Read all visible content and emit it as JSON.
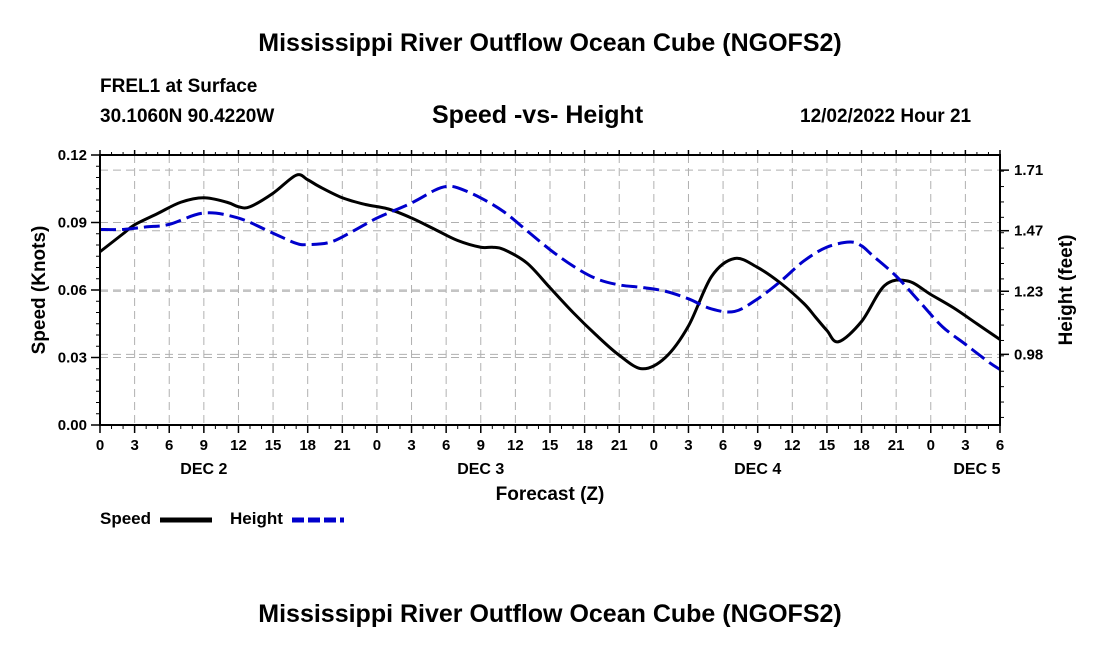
{
  "header": {
    "title": "Mississippi River Outflow Ocean Cube (NGOFS2)",
    "station": "FREL1 at Surface",
    "coords": "30.1060N  90.4220W",
    "subtitle": "Speed -vs- Height",
    "datetime": "12/02/2022 Hour 21"
  },
  "footer": {
    "title": "Mississippi River Outflow Ocean Cube (NGOFS2)"
  },
  "legend": {
    "speed_label": "Speed",
    "height_label": "Height"
  },
  "chart_data": {
    "type": "line",
    "title": "Speed -vs- Height",
    "xlabel": "Forecast (Z)",
    "ylabel": "Speed (Knots)",
    "y2label": "Height (feet)",
    "xlim": [
      0,
      78
    ],
    "ylim": [
      0,
      0.12
    ],
    "y2lim": [
      0.7,
      1.77
    ],
    "grid": true,
    "legend_position": "bottom-left",
    "x_ticks": [
      0,
      3,
      6,
      9,
      12,
      15,
      18,
      21,
      24,
      27,
      30,
      33,
      36,
      39,
      42,
      45,
      48,
      51,
      54,
      57,
      60,
      63,
      66,
      69,
      72,
      75,
      78
    ],
    "x_tick_labels": [
      "0",
      "3",
      "6",
      "9",
      "12",
      "15",
      "18",
      "21",
      "0",
      "3",
      "6",
      "9",
      "12",
      "15",
      "18",
      "21",
      "0",
      "3",
      "6",
      "9",
      "12",
      "15",
      "18",
      "21",
      "0",
      "3",
      "6"
    ],
    "day_labels": [
      {
        "x": 9,
        "label": "DEC 2"
      },
      {
        "x": 33,
        "label": "DEC 3"
      },
      {
        "x": 57,
        "label": "DEC 4"
      },
      {
        "x": 76,
        "label": "DEC 5"
      }
    ],
    "y_ticks": [
      0,
      0.03,
      0.06,
      0.09,
      0.12
    ],
    "y_tick_labels": [
      "0.00",
      "0.03",
      "0.06",
      "0.09",
      "0.12"
    ],
    "y2_ticks": [
      0.98,
      1.23,
      1.47,
      1.71
    ],
    "y2_tick_labels": [
      "0.98",
      "1.23",
      "1.47",
      "1.71"
    ],
    "series": [
      {
        "name": "Speed",
        "axis": "left",
        "color": "#000000",
        "dashed": false,
        "x": [
          0,
          2,
          3,
          5,
          7,
          9,
          11,
          12,
          13,
          15,
          17,
          18,
          19,
          21,
          23,
          25,
          27,
          29,
          31,
          33,
          34,
          35,
          37,
          39,
          41,
          43,
          45,
          47,
          49,
          51,
          53,
          55,
          57,
          59,
          61,
          62,
          63,
          64,
          66,
          68,
          70,
          72,
          74,
          76,
          78
        ],
        "values": [
          0.077,
          0.085,
          0.089,
          0.094,
          0.099,
          0.101,
          0.099,
          0.097,
          0.097,
          0.103,
          0.111,
          0.109,
          0.106,
          0.101,
          0.098,
          0.096,
          0.092,
          0.087,
          0.082,
          0.079,
          0.079,
          0.078,
          0.072,
          0.061,
          0.05,
          0.04,
          0.031,
          0.025,
          0.03,
          0.044,
          0.066,
          0.074,
          0.07,
          0.063,
          0.054,
          0.048,
          0.042,
          0.037,
          0.046,
          0.062,
          0.064,
          0.058,
          0.052,
          0.045,
          0.038
        ]
      },
      {
        "name": "Height",
        "axis": "right",
        "color": "#0000cc",
        "dashed": true,
        "x": [
          0,
          2,
          4,
          6,
          9,
          12,
          15,
          17,
          18,
          20,
          22,
          24,
          27,
          29,
          30,
          31,
          33,
          35,
          37,
          39,
          41,
          43,
          45,
          47,
          49,
          51,
          53,
          55,
          57,
          59,
          61,
          63,
          65,
          66,
          67,
          69,
          71,
          73,
          75,
          77,
          78
        ],
        "values": [
          1.475,
          1.475,
          1.485,
          1.495,
          1.54,
          1.52,
          1.46,
          1.42,
          1.415,
          1.425,
          1.47,
          1.52,
          1.58,
          1.63,
          1.645,
          1.64,
          1.6,
          1.545,
          1.47,
          1.395,
          1.33,
          1.28,
          1.255,
          1.245,
          1.23,
          1.2,
          1.16,
          1.15,
          1.2,
          1.27,
          1.35,
          1.405,
          1.425,
          1.41,
          1.37,
          1.29,
          1.19,
          1.09,
          1.02,
          0.95,
          0.92
        ]
      }
    ]
  }
}
